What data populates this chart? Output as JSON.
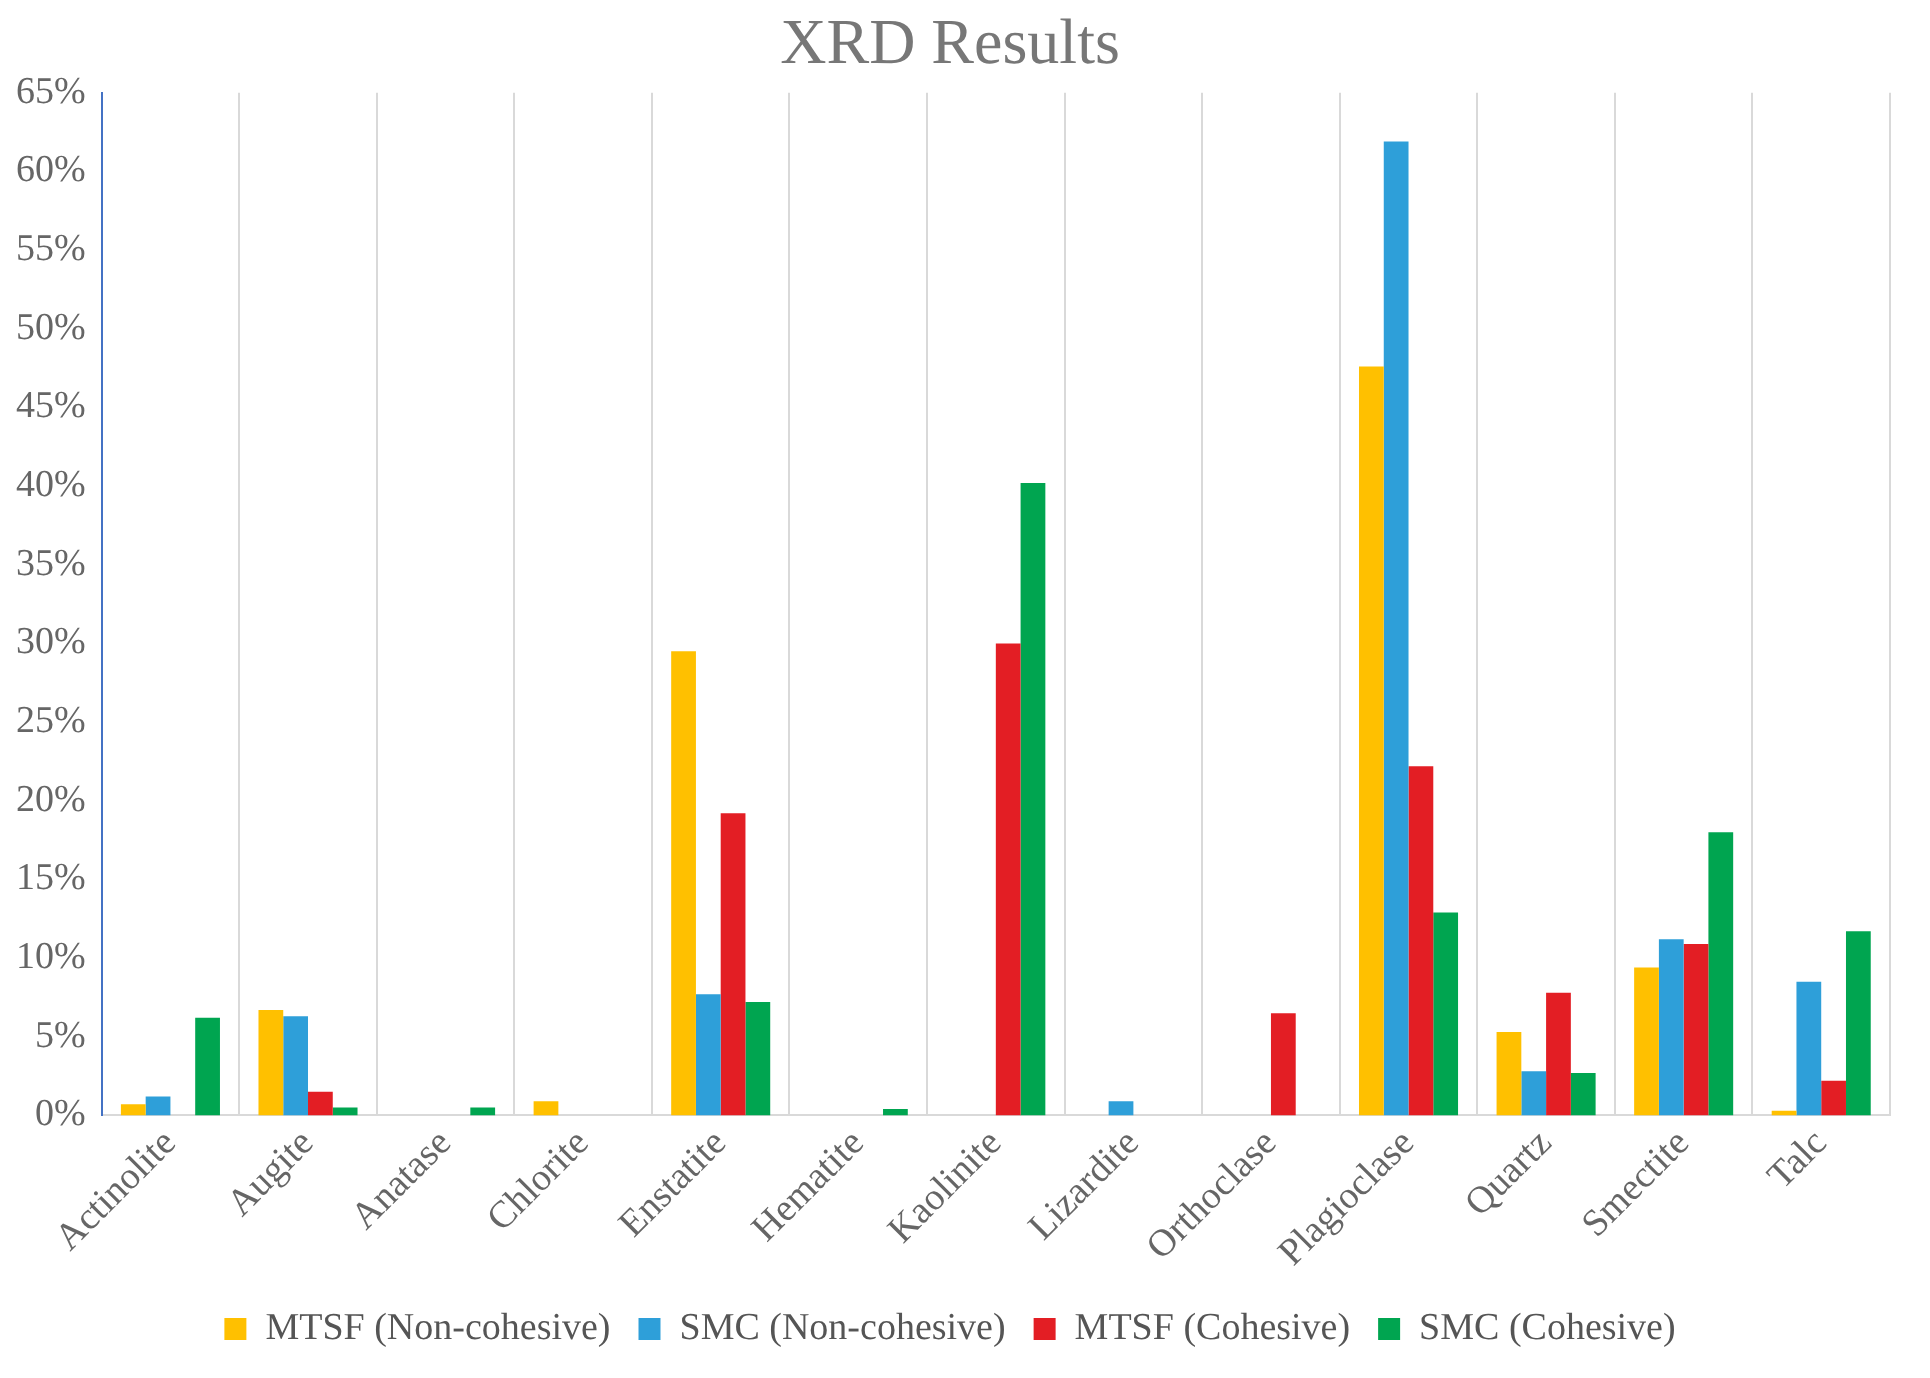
{
  "chart_data": {
    "type": "bar",
    "title": "XRD Results",
    "categories": [
      "Actinolite",
      "Augite",
      "Anatase",
      "Chlorite",
      "Enstatite",
      "Hematite",
      "Kaolinite",
      "Lizardite",
      "Orthoclase",
      "Plagioclase",
      "Quartz",
      "Smectite",
      "Talc"
    ],
    "series": [
      {
        "name": "MTSF (Non-cohesive)",
        "color": "#ffc000",
        "values": [
          0.7,
          6.7,
          0,
          0.9,
          29.5,
          0,
          0,
          0,
          0,
          47.6,
          5.3,
          9.4,
          0.3
        ]
      },
      {
        "name": "SMC (Non-cohesive)",
        "color": "#2e9fd9",
        "values": [
          1.2,
          6.3,
          0,
          0,
          7.7,
          0,
          0,
          0.9,
          0,
          61.9,
          2.8,
          11.2,
          8.5
        ]
      },
      {
        "name": "MTSF (Cohesive)",
        "color": "#e31e24",
        "values": [
          0,
          1.5,
          0,
          0,
          19.2,
          0,
          30.0,
          0,
          6.5,
          22.2,
          7.8,
          10.9,
          2.2
        ]
      },
      {
        "name": "SMC (Cohesive)",
        "color": "#00a550",
        "values": [
          6.2,
          0.5,
          0.5,
          0,
          7.2,
          0.4,
          40.2,
          0,
          0,
          12.9,
          2.7,
          18.0,
          11.7
        ]
      }
    ],
    "ylim": [
      0,
      65
    ],
    "yticks": [
      {
        "value": 0,
        "label": "0%"
      },
      {
        "value": 5,
        "label": "5%"
      },
      {
        "value": 10,
        "label": "10%"
      },
      {
        "value": 15,
        "label": "15%"
      },
      {
        "value": 20,
        "label": "20%"
      },
      {
        "value": 25,
        "label": "25%"
      },
      {
        "value": 30,
        "label": "30%"
      },
      {
        "value": 35,
        "label": "35%"
      },
      {
        "value": 40,
        "label": "40%"
      },
      {
        "value": 45,
        "label": "45%"
      },
      {
        "value": 50,
        "label": "50%"
      },
      {
        "value": 55,
        "label": "55%"
      },
      {
        "value": 60,
        "label": "60%"
      },
      {
        "value": 65,
        "label": "65%"
      }
    ],
    "grid": "x",
    "legend": "bottom"
  }
}
